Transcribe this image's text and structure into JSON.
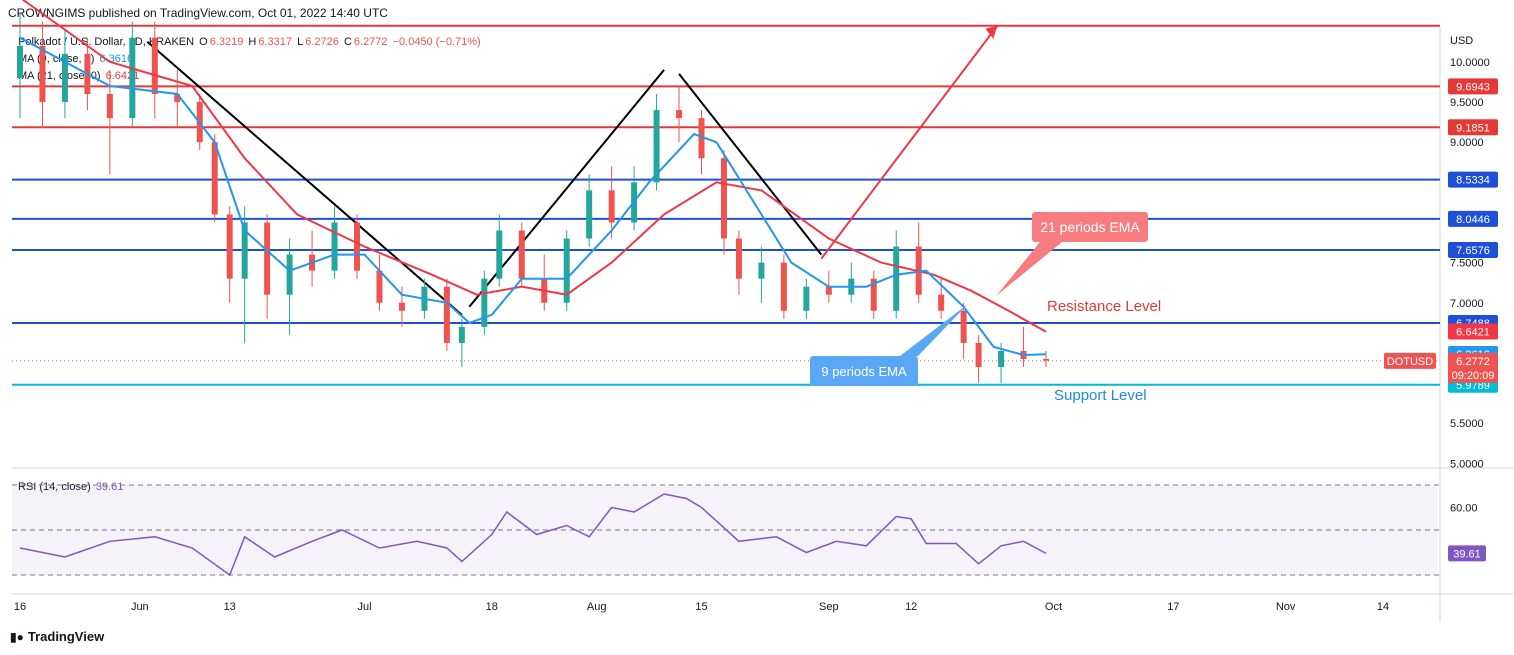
{
  "header": {
    "published": "CROWNGIMS published on TradingView.com, Oct 01, 2022 14:40 UTC"
  },
  "legend": {
    "symbol_line": {
      "name": "Polkadot / U.S. Dollar, 1D, KRAKEN",
      "o_label": "O",
      "o_value": "6.3219",
      "h_label": "H",
      "h_value": "6.3317",
      "l_label": "L",
      "l_value": "6.2726",
      "c_label": "C",
      "c_value": "6.2772",
      "change": "−0.0450 (−0.71%)"
    },
    "ma9": {
      "name": "MA (9, close, 0)",
      "value": "6.3616"
    },
    "ma21": {
      "name": "MA (21, close, 0)",
      "value": "6.6421"
    },
    "rsi": {
      "name": "RSI (14, close)",
      "value": "39.61"
    }
  },
  "footer": {
    "brand": "TradingView"
  },
  "colors": {
    "up": "#26a69a",
    "down": "#ef5350",
    "ema9": "#2196f3",
    "ema21": "#f23645",
    "red_level": "#e53935",
    "blue_level": "#1e4fd8",
    "support_level": "#00bcd4",
    "rsi_line": "#7e57c2",
    "rsi_band": "rgba(126,87,194,0.08)"
  },
  "chart_data": {
    "type": "candlestick",
    "currency": "USD",
    "symbol_tag": "DOTUSD",
    "countdown": "09:20:09",
    "price_axis_ticks": [
      "10.0000",
      "9.5000",
      "9.0000",
      "7.5000",
      "7.0000",
      "5.5000",
      "5.0000"
    ],
    "x_tick_labels": [
      {
        "label": "16",
        "date": "2022-05-16"
      },
      {
        "label": "Jun",
        "date": "2022-06-01"
      },
      {
        "label": "13",
        "date": "2022-06-13"
      },
      {
        "label": "Jul",
        "date": "2022-07-01"
      },
      {
        "label": "18",
        "date": "2022-07-18"
      },
      {
        "label": "Aug",
        "date": "2022-08-01"
      },
      {
        "label": "15",
        "date": "2022-08-15"
      },
      {
        "label": "Sep",
        "date": "2022-09-01"
      },
      {
        "label": "12",
        "date": "2022-09-12"
      },
      {
        "label": "Oct",
        "date": "2022-10-01"
      },
      {
        "label": "17",
        "date": "2022-10-17"
      },
      {
        "label": "Nov",
        "date": "2022-11-01"
      },
      {
        "label": "14",
        "date": "2022-11-14"
      }
    ],
    "levels": [
      {
        "value": 10.45,
        "label": "",
        "color": "red"
      },
      {
        "value": 9.6943,
        "label": "9.6943",
        "color": "red"
      },
      {
        "value": 9.1851,
        "label": "9.1851",
        "color": "red"
      },
      {
        "value": 8.5334,
        "label": "8.5334",
        "color": "blue"
      },
      {
        "value": 8.0446,
        "label": "8.0446",
        "color": "blue"
      },
      {
        "value": 7.6576,
        "label": "7.6576",
        "color": "blue"
      },
      {
        "value": 6.7488,
        "label": "6.7488",
        "color": "blue"
      },
      {
        "value": 5.9789,
        "label": "5.9789",
        "color": "support"
      }
    ],
    "axis_badges": [
      {
        "value": 6.6421,
        "label": "6.6421",
        "color": "red"
      },
      {
        "value": 6.3616,
        "label": "6.3616",
        "color": "blue"
      }
    ],
    "last_close": 6.2772,
    "candles": [
      {
        "date": "2022-05-16",
        "o": 9.8,
        "h": 10.6,
        "l": 9.3,
        "c": 10.2
      },
      {
        "date": "2022-05-19",
        "o": 10.2,
        "h": 10.5,
        "l": 9.2,
        "c": 9.5
      },
      {
        "date": "2022-05-22",
        "o": 9.5,
        "h": 10.4,
        "l": 9.3,
        "c": 10.1
      },
      {
        "date": "2022-05-25",
        "o": 10.1,
        "h": 10.3,
        "l": 9.4,
        "c": 9.6
      },
      {
        "date": "2022-05-28",
        "o": 9.6,
        "h": 9.9,
        "l": 8.6,
        "c": 9.3
      },
      {
        "date": "2022-05-31",
        "o": 9.3,
        "h": 10.5,
        "l": 9.2,
        "c": 10.3
      },
      {
        "date": "2022-06-03",
        "o": 10.3,
        "h": 10.5,
        "l": 9.3,
        "c": 9.6
      },
      {
        "date": "2022-06-06",
        "o": 9.6,
        "h": 9.9,
        "l": 9.2,
        "c": 9.5
      },
      {
        "date": "2022-06-09",
        "o": 9.5,
        "h": 9.6,
        "l": 8.9,
        "c": 9.0
      },
      {
        "date": "2022-06-11",
        "o": 9.0,
        "h": 9.1,
        "l": 8.0,
        "c": 8.1
      },
      {
        "date": "2022-06-13",
        "o": 8.1,
        "h": 8.2,
        "l": 7.0,
        "c": 7.3
      },
      {
        "date": "2022-06-15",
        "o": 7.3,
        "h": 8.2,
        "l": 6.5,
        "c": 8.0
      },
      {
        "date": "2022-06-18",
        "o": 8.0,
        "h": 8.1,
        "l": 6.8,
        "c": 7.1
      },
      {
        "date": "2022-06-21",
        "o": 7.1,
        "h": 7.8,
        "l": 6.6,
        "c": 7.6
      },
      {
        "date": "2022-06-24",
        "o": 7.6,
        "h": 7.9,
        "l": 7.2,
        "c": 7.4
      },
      {
        "date": "2022-06-27",
        "o": 7.4,
        "h": 8.2,
        "l": 7.3,
        "c": 8.0
      },
      {
        "date": "2022-06-30",
        "o": 8.0,
        "h": 8.1,
        "l": 7.3,
        "c": 7.4
      },
      {
        "date": "2022-07-03",
        "o": 7.4,
        "h": 7.6,
        "l": 6.9,
        "c": 7.0
      },
      {
        "date": "2022-07-06",
        "o": 7.0,
        "h": 7.2,
        "l": 6.7,
        "c": 6.9
      },
      {
        "date": "2022-07-09",
        "o": 6.9,
        "h": 7.3,
        "l": 6.8,
        "c": 7.2
      },
      {
        "date": "2022-07-12",
        "o": 7.2,
        "h": 7.3,
        "l": 6.4,
        "c": 6.5
      },
      {
        "date": "2022-07-14",
        "o": 6.5,
        "h": 6.8,
        "l": 6.2,
        "c": 6.7
      },
      {
        "date": "2022-07-17",
        "o": 6.7,
        "h": 7.4,
        "l": 6.6,
        "c": 7.3
      },
      {
        "date": "2022-07-19",
        "o": 7.3,
        "h": 8.1,
        "l": 7.2,
        "c": 7.9
      },
      {
        "date": "2022-07-22",
        "o": 7.9,
        "h": 8.0,
        "l": 7.2,
        "c": 7.3
      },
      {
        "date": "2022-07-25",
        "o": 7.3,
        "h": 7.6,
        "l": 6.9,
        "c": 7.0
      },
      {
        "date": "2022-07-28",
        "o": 7.0,
        "h": 7.9,
        "l": 6.9,
        "c": 7.8
      },
      {
        "date": "2022-07-31",
        "o": 7.8,
        "h": 8.6,
        "l": 7.7,
        "c": 8.4
      },
      {
        "date": "2022-08-03",
        "o": 8.4,
        "h": 8.7,
        "l": 7.8,
        "c": 8.0
      },
      {
        "date": "2022-08-06",
        "o": 8.0,
        "h": 8.7,
        "l": 7.9,
        "c": 8.5
      },
      {
        "date": "2022-08-09",
        "o": 8.5,
        "h": 9.6,
        "l": 8.4,
        "c": 9.4
      },
      {
        "date": "2022-08-12",
        "o": 9.4,
        "h": 9.7,
        "l": 9.0,
        "c": 9.3
      },
      {
        "date": "2022-08-15",
        "o": 9.3,
        "h": 9.4,
        "l": 8.6,
        "c": 8.8
      },
      {
        "date": "2022-08-18",
        "o": 8.8,
        "h": 8.9,
        "l": 7.6,
        "c": 7.8
      },
      {
        "date": "2022-08-20",
        "o": 7.8,
        "h": 7.9,
        "l": 7.1,
        "c": 7.3
      },
      {
        "date": "2022-08-23",
        "o": 7.3,
        "h": 7.7,
        "l": 7.0,
        "c": 7.5
      },
      {
        "date": "2022-08-26",
        "o": 7.5,
        "h": 7.6,
        "l": 6.8,
        "c": 6.9
      },
      {
        "date": "2022-08-29",
        "o": 6.9,
        "h": 7.3,
        "l": 6.8,
        "c": 7.2
      },
      {
        "date": "2022-09-01",
        "o": 7.2,
        "h": 7.4,
        "l": 7.0,
        "c": 7.1
      },
      {
        "date": "2022-09-04",
        "o": 7.1,
        "h": 7.5,
        "l": 7.0,
        "c": 7.3
      },
      {
        "date": "2022-09-07",
        "o": 7.3,
        "h": 7.4,
        "l": 6.8,
        "c": 6.9
      },
      {
        "date": "2022-09-10",
        "o": 6.9,
        "h": 7.9,
        "l": 6.8,
        "c": 7.7
      },
      {
        "date": "2022-09-13",
        "o": 7.7,
        "h": 8.0,
        "l": 7.0,
        "c": 7.1
      },
      {
        "date": "2022-09-16",
        "o": 7.1,
        "h": 7.3,
        "l": 6.8,
        "c": 6.9
      },
      {
        "date": "2022-09-19",
        "o": 6.9,
        "h": 7.0,
        "l": 6.3,
        "c": 6.5
      },
      {
        "date": "2022-09-21",
        "o": 6.5,
        "h": 6.6,
        "l": 6.0,
        "c": 6.2
      },
      {
        "date": "2022-09-24",
        "o": 6.2,
        "h": 6.5,
        "l": 6.0,
        "c": 6.4
      },
      {
        "date": "2022-09-27",
        "o": 6.4,
        "h": 6.7,
        "l": 6.2,
        "c": 6.3
      },
      {
        "date": "2022-09-30",
        "o": 6.3,
        "h": 6.4,
        "l": 6.2,
        "c": 6.28
      }
    ],
    "ema9": [
      {
        "date": "2022-05-16",
        "v": 10.3
      },
      {
        "date": "2022-05-28",
        "v": 9.7
      },
      {
        "date": "2022-06-06",
        "v": 9.6
      },
      {
        "date": "2022-06-11",
        "v": 9.0
      },
      {
        "date": "2022-06-15",
        "v": 7.9
      },
      {
        "date": "2022-06-21",
        "v": 7.4
      },
      {
        "date": "2022-06-27",
        "v": 7.6
      },
      {
        "date": "2022-07-01",
        "v": 7.6
      },
      {
        "date": "2022-07-06",
        "v": 7.1
      },
      {
        "date": "2022-07-12",
        "v": 7.0
      },
      {
        "date": "2022-07-15",
        "v": 6.75
      },
      {
        "date": "2022-07-18",
        "v": 6.85
      },
      {
        "date": "2022-07-22",
        "v": 7.3
      },
      {
        "date": "2022-07-28",
        "v": 7.3
      },
      {
        "date": "2022-08-03",
        "v": 7.9
      },
      {
        "date": "2022-08-08",
        "v": 8.5
      },
      {
        "date": "2022-08-14",
        "v": 9.1
      },
      {
        "date": "2022-08-17",
        "v": 9.0
      },
      {
        "date": "2022-08-23",
        "v": 8.1
      },
      {
        "date": "2022-08-27",
        "v": 7.5
      },
      {
        "date": "2022-09-01",
        "v": 7.2
      },
      {
        "date": "2022-09-06",
        "v": 7.2
      },
      {
        "date": "2022-09-10",
        "v": 7.35
      },
      {
        "date": "2022-09-14",
        "v": 7.4
      },
      {
        "date": "2022-09-19",
        "v": 6.95
      },
      {
        "date": "2022-09-23",
        "v": 6.45
      },
      {
        "date": "2022-09-27",
        "v": 6.35
      },
      {
        "date": "2022-09-30",
        "v": 6.36
      }
    ],
    "ema21": [
      {
        "date": "2022-05-16",
        "v": 10.8
      },
      {
        "date": "2022-05-28",
        "v": 10.0
      },
      {
        "date": "2022-06-08",
        "v": 9.7
      },
      {
        "date": "2022-06-15",
        "v": 8.8
      },
      {
        "date": "2022-06-22",
        "v": 8.1
      },
      {
        "date": "2022-07-01",
        "v": 7.7
      },
      {
        "date": "2022-07-10",
        "v": 7.35
      },
      {
        "date": "2022-07-16",
        "v": 7.1
      },
      {
        "date": "2022-07-22",
        "v": 7.2
      },
      {
        "date": "2022-07-28",
        "v": 7.1
      },
      {
        "date": "2022-08-03",
        "v": 7.5
      },
      {
        "date": "2022-08-10",
        "v": 8.1
      },
      {
        "date": "2022-08-17",
        "v": 8.5
      },
      {
        "date": "2022-08-23",
        "v": 8.4
      },
      {
        "date": "2022-09-01",
        "v": 7.8
      },
      {
        "date": "2022-09-08",
        "v": 7.5
      },
      {
        "date": "2022-09-15",
        "v": 7.35
      },
      {
        "date": "2022-09-20",
        "v": 7.15
      },
      {
        "date": "2022-09-25",
        "v": 6.9
      },
      {
        "date": "2022-09-30",
        "v": 6.64
      }
    ],
    "rsi": {
      "levels": [
        70,
        50,
        30
      ],
      "ticks": [
        "60.00"
      ],
      "last": "39.61",
      "values": [
        {
          "date": "2022-05-16",
          "v": 42
        },
        {
          "date": "2022-05-22",
          "v": 38
        },
        {
          "date": "2022-05-28",
          "v": 45
        },
        {
          "date": "2022-06-03",
          "v": 47
        },
        {
          "date": "2022-06-08",
          "v": 42
        },
        {
          "date": "2022-06-13",
          "v": 30
        },
        {
          "date": "2022-06-15",
          "v": 47
        },
        {
          "date": "2022-06-19",
          "v": 38
        },
        {
          "date": "2022-06-24",
          "v": 45
        },
        {
          "date": "2022-06-28",
          "v": 50
        },
        {
          "date": "2022-07-03",
          "v": 42
        },
        {
          "date": "2022-07-08",
          "v": 45
        },
        {
          "date": "2022-07-12",
          "v": 42
        },
        {
          "date": "2022-07-14",
          "v": 36
        },
        {
          "date": "2022-07-18",
          "v": 48
        },
        {
          "date": "2022-07-20",
          "v": 58
        },
        {
          "date": "2022-07-24",
          "v": 48
        },
        {
          "date": "2022-07-28",
          "v": 52
        },
        {
          "date": "2022-07-31",
          "v": 47
        },
        {
          "date": "2022-08-03",
          "v": 60
        },
        {
          "date": "2022-08-06",
          "v": 58
        },
        {
          "date": "2022-08-10",
          "v": 66
        },
        {
          "date": "2022-08-13",
          "v": 64
        },
        {
          "date": "2022-08-15",
          "v": 60
        },
        {
          "date": "2022-08-20",
          "v": 45
        },
        {
          "date": "2022-08-25",
          "v": 47
        },
        {
          "date": "2022-08-29",
          "v": 40
        },
        {
          "date": "2022-09-02",
          "v": 45
        },
        {
          "date": "2022-09-06",
          "v": 43
        },
        {
          "date": "2022-09-10",
          "v": 56
        },
        {
          "date": "2022-09-12",
          "v": 55
        },
        {
          "date": "2022-09-14",
          "v": 44
        },
        {
          "date": "2022-09-18",
          "v": 44
        },
        {
          "date": "2022-09-21",
          "v": 35
        },
        {
          "date": "2022-09-24",
          "v": 43
        },
        {
          "date": "2022-09-27",
          "v": 45
        },
        {
          "date": "2022-09-30",
          "v": 39.61
        }
      ]
    }
  },
  "annotations": {
    "ema21_callout": "21 periods EMA",
    "ema9_callout": "9 periods EMA",
    "resistance": "Resistance Level",
    "support": "Support Level"
  }
}
